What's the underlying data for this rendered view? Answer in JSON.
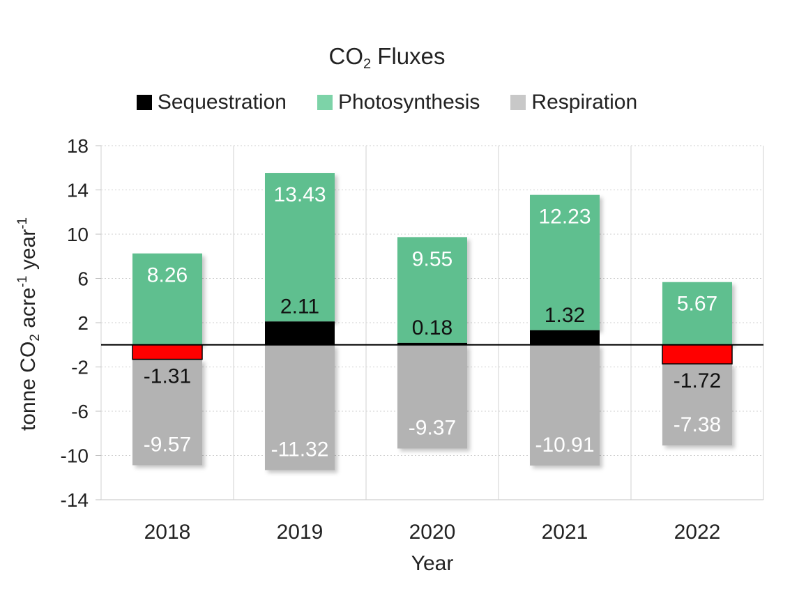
{
  "chart_data": {
    "type": "bar",
    "stacked": "diverging",
    "title": "CO2 Fluxes",
    "title_main": "CO",
    "title_sub": "2",
    "title_rest": " Fluxes",
    "xlabel": "Year",
    "ylabel": "tonne CO2 acre-1 year-1",
    "ylabel_parts": {
      "a": "tonne CO",
      "b": "2",
      "c": " acre",
      "d": "-1",
      "e": " year",
      "f": "-1"
    },
    "categories": [
      "2018",
      "2019",
      "2020",
      "2021",
      "2022"
    ],
    "ylim": [
      -14,
      18
    ],
    "yticks": [
      18,
      14,
      10,
      6,
      2,
      -2,
      -6,
      -10,
      -14
    ],
    "grid": true,
    "legend_position": "top-center",
    "series": [
      {
        "name": "Photosynthesis",
        "values": [
          8.26,
          13.43,
          9.55,
          12.23,
          5.67
        ],
        "labels": [
          "8.26",
          "13.43",
          "9.55",
          "12.23",
          "5.67"
        ],
        "color": "#5fbf8f"
      },
      {
        "name": "Respiration",
        "values": [
          -9.57,
          -11.32,
          -9.37,
          -10.91,
          -7.38
        ],
        "labels": [
          "-9.57",
          "-11.32",
          "-9.37",
          "-10.91",
          "-7.38"
        ],
        "color": "#b3b3b3"
      },
      {
        "name": "Sequestration",
        "values": [
          -1.31,
          2.11,
          0.18,
          1.32,
          -1.72
        ],
        "labels": [
          "-1.31",
          "2.11",
          "0.18",
          "1.32",
          "-1.72"
        ],
        "color": "#000000",
        "negative_color": "#ff0000"
      }
    ],
    "legend": [
      {
        "name": "Sequestration",
        "color": "#000000"
      },
      {
        "name": "Photosynthesis",
        "color": "#7dd3a8"
      },
      {
        "name": "Respiration",
        "color": "#c8c8c8"
      }
    ]
  }
}
